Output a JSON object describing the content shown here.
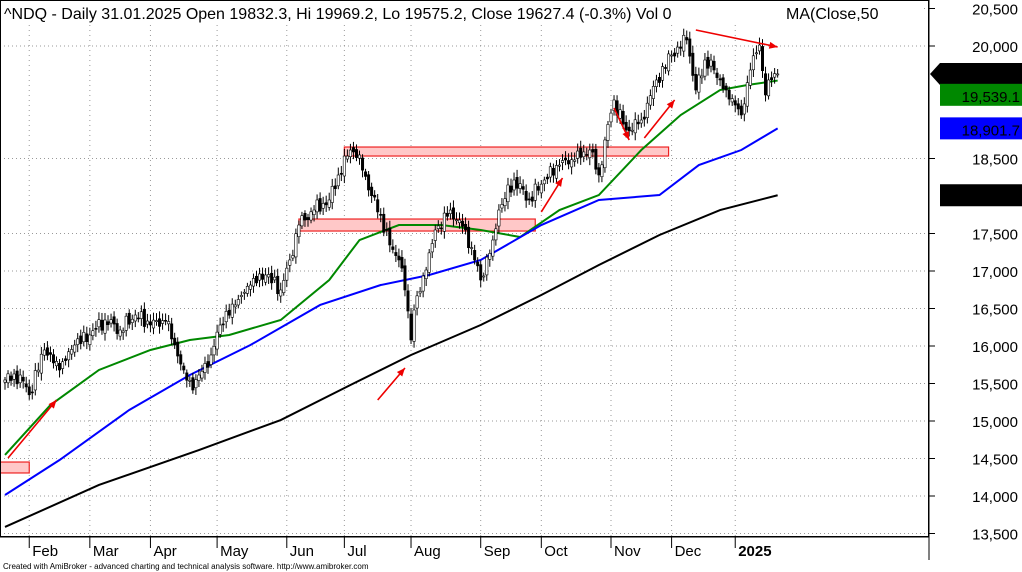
{
  "header": {
    "title": "^NDQ - Daily 31.01.2025 Open 19832.3, Hi 19969.2, Lo 19575.2, Close 19627.4 (-0.3%) Vol 0",
    "ma_label": "MA(Close,50"
  },
  "footer": "Created with AmiBroker - advanced charting and technical analysis software. http://www.amibroker.com",
  "colors": {
    "price": "#000000",
    "ma50": "#008800",
    "ma100": "#0000ff",
    "ma200": "#000000",
    "zone": "#ff9090",
    "arrow": "#ee0000"
  },
  "chart_data": {
    "type": "candlestick",
    "title": "^NDQ - Daily",
    "ylim": [
      13400,
      20600
    ],
    "xlim": [
      0,
      256
    ],
    "y_ticks": [
      {
        "v": 20500,
        "label": "20,500"
      },
      {
        "v": 20000,
        "label": "20,000"
      },
      {
        "v": 18500,
        "label": "18,500"
      },
      {
        "v": 17500,
        "label": "17,500"
      },
      {
        "v": 17000,
        "label": "17,000"
      },
      {
        "v": 16500,
        "label": "16,500"
      },
      {
        "v": 16000,
        "label": "16,000"
      },
      {
        "v": 15500,
        "label": "15,500"
      },
      {
        "v": 15000,
        "label": "15,000"
      },
      {
        "v": 14500,
        "label": "14,500"
      },
      {
        "v": 14000,
        "label": "14,000"
      },
      {
        "v": 13500,
        "label": "13,500"
      }
    ],
    "x_ticks": [
      {
        "bar": 8,
        "label": "Feb"
      },
      {
        "bar": 28,
        "label": "Mar"
      },
      {
        "bar": 48,
        "label": "Apr"
      },
      {
        "bar": 70,
        "label": "May"
      },
      {
        "bar": 93,
        "label": "Jun"
      },
      {
        "bar": 112,
        "label": "Jul"
      },
      {
        "bar": 134,
        "label": "Aug"
      },
      {
        "bar": 157,
        "label": "Sep"
      },
      {
        "bar": 177,
        "label": "Oct"
      },
      {
        "bar": 200,
        "label": "Nov"
      },
      {
        "bar": 220,
        "label": "Dec"
      },
      {
        "bar": 241,
        "label": "2025",
        "bold": true
      }
    ],
    "close_anchors": [
      [
        0,
        15547
      ],
      [
        5,
        15613
      ],
      [
        8,
        15350
      ],
      [
        13,
        15947
      ],
      [
        18,
        15680
      ],
      [
        23,
        16013
      ],
      [
        28,
        16147
      ],
      [
        33,
        16347
      ],
      [
        38,
        16213
      ],
      [
        43,
        16413
      ],
      [
        48,
        16280
      ],
      [
        53,
        16330
      ],
      [
        56,
        16013
      ],
      [
        59,
        15680
      ],
      [
        62,
        15413
      ],
      [
        64,
        15613
      ],
      [
        68,
        15880
      ],
      [
        71,
        16280
      ],
      [
        76,
        16547
      ],
      [
        81,
        16813
      ],
      [
        86,
        16947
      ],
      [
        91,
        16747
      ],
      [
        94,
        17147
      ],
      [
        97,
        17613
      ],
      [
        102,
        17813
      ],
      [
        107,
        17947
      ],
      [
        110,
        18280
      ],
      [
        114,
        18613
      ],
      [
        117,
        18547
      ],
      [
        120,
        18080
      ],
      [
        124,
        17747
      ],
      [
        127,
        17347
      ],
      [
        130,
        17147
      ],
      [
        132,
        16747
      ],
      [
        134,
        16080
      ],
      [
        135,
        16480
      ],
      [
        139,
        17013
      ],
      [
        142,
        17547
      ],
      [
        147,
        17813
      ],
      [
        152,
        17547
      ],
      [
        155,
        17147
      ],
      [
        157,
        16880
      ],
      [
        161,
        17413
      ],
      [
        163,
        17813
      ],
      [
        168,
        18213
      ],
      [
        173,
        17947
      ],
      [
        178,
        18213
      ],
      [
        183,
        18413
      ],
      [
        188,
        18480
      ],
      [
        193,
        18613
      ],
      [
        196,
        18280
      ],
      [
        198,
        18747
      ],
      [
        201,
        19280
      ],
      [
        205,
        18880
      ],
      [
        210,
        19013
      ],
      [
        215,
        19547
      ],
      [
        220,
        19880
      ],
      [
        225,
        20080
      ],
      [
        228,
        19413
      ],
      [
        231,
        19813
      ],
      [
        234,
        19680
      ],
      [
        238,
        19413
      ],
      [
        241,
        19213
      ],
      [
        243,
        19080
      ],
      [
        246,
        19680
      ],
      [
        249,
        20013
      ],
      [
        251,
        19347
      ],
      [
        253,
        19550
      ],
      [
        255,
        19627.4
      ]
    ],
    "series": [
      {
        "name": "MA50",
        "color": "#008800",
        "points": [
          [
            0,
            14547
          ],
          [
            15,
            15213
          ],
          [
            31,
            15680
          ],
          [
            48,
            15947
          ],
          [
            61,
            16080
          ],
          [
            74,
            16147
          ],
          [
            91,
            16347
          ],
          [
            107,
            16880
          ],
          [
            117,
            17413
          ],
          [
            130,
            17613
          ],
          [
            144,
            17613
          ],
          [
            157,
            17547
          ],
          [
            170,
            17453
          ],
          [
            183,
            17813
          ],
          [
            196,
            18013
          ],
          [
            210,
            18613
          ],
          [
            223,
            19080
          ],
          [
            236,
            19413
          ],
          [
            245,
            19480
          ],
          [
            255,
            19539.1
          ]
        ],
        "last_label": "19,539.1"
      },
      {
        "name": "MA100",
        "color": "#0000ff",
        "points": [
          [
            0,
            14013
          ],
          [
            18,
            14480
          ],
          [
            41,
            15147
          ],
          [
            61,
            15613
          ],
          [
            81,
            16013
          ],
          [
            104,
            16547
          ],
          [
            124,
            16813
          ],
          [
            140,
            16947
          ],
          [
            157,
            17147
          ],
          [
            177,
            17613
          ],
          [
            196,
            17947
          ],
          [
            216,
            18013
          ],
          [
            229,
            18413
          ],
          [
            243,
            18613
          ],
          [
            255,
            18901.7
          ]
        ],
        "last_label": "18,901.7"
      },
      {
        "name": "MA200",
        "color": "#000000",
        "points": [
          [
            0,
            13587
          ],
          [
            31,
            14147
          ],
          [
            64,
            14613
          ],
          [
            91,
            15013
          ],
          [
            114,
            15480
          ],
          [
            134,
            15880
          ],
          [
            157,
            16280
          ],
          [
            177,
            16680
          ],
          [
            196,
            17080
          ],
          [
            216,
            17480
          ],
          [
            236,
            17813
          ],
          [
            255,
            18010
          ]
        ],
        "last_label": "18,010"
      }
    ],
    "last_close_label": "19,627.4",
    "zones": [
      {
        "bar_from": -2,
        "bar_to": 8,
        "low": 14307,
        "high": 14453
      },
      {
        "bar_from": 97,
        "bar_to": 175,
        "low": 17533,
        "high": 17693
      },
      {
        "bar_from": 112,
        "bar_to": 219,
        "low": 18533,
        "high": 18653
      }
    ],
    "arrows": [
      {
        "from": [
          1,
          14507
        ],
        "to": [
          17,
          15280
        ]
      },
      {
        "from": [
          123,
          15280
        ],
        "to": [
          132,
          15707
        ]
      },
      {
        "from": [
          177,
          17787
        ],
        "to": [
          184,
          18240
        ]
      },
      {
        "from": [
          201,
          19173
        ],
        "to": [
          206,
          18747
        ]
      },
      {
        "from": [
          211,
          18773
        ],
        "to": [
          221,
          19280
        ]
      },
      {
        "from": [
          228,
          20213
        ],
        "to": [
          255,
          19987
        ]
      }
    ]
  }
}
